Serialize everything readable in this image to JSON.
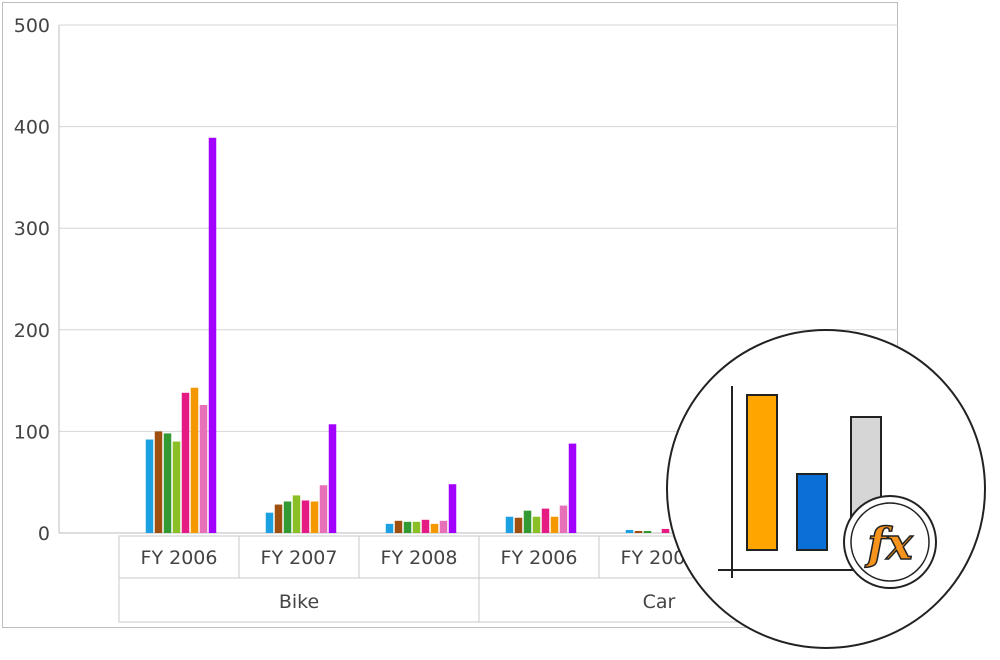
{
  "chart_data": {
    "type": "bar",
    "title": "",
    "xlabel": "",
    "ylabel": "",
    "ylim": [
      0,
      500
    ],
    "yticks": [
      0,
      100,
      200,
      300,
      400,
      500
    ],
    "grid": true,
    "groups": [
      {
        "label": "Bike",
        "categories": [
          "FY 2006",
          "FY 2007",
          "FY 2008"
        ]
      },
      {
        "label": "Car",
        "categories": [
          "FY 2006",
          "FY 2007"
        ]
      }
    ],
    "series_colors": [
      "#1ba1e2",
      "#a0500e",
      "#339933",
      "#8cbf26",
      "#e51a83",
      "#f59800",
      "#e671b8",
      "#a200ff"
    ],
    "bars": [
      [
        92,
        100,
        98,
        90,
        138,
        143,
        126,
        389
      ],
      [
        20,
        28,
        31,
        37,
        32,
        31,
        47,
        107
      ],
      [
        9,
        12,
        11,
        11,
        13,
        9,
        12,
        48
      ],
      [
        16,
        15,
        22,
        16,
        24,
        16,
        27,
        88
      ],
      [
        3,
        2,
        2,
        0,
        4,
        0,
        0,
        0
      ]
    ]
  },
  "overlay": {
    "icon": "formula-chart-icon",
    "fx_label": "fx",
    "colors": {
      "bar1": "#ffa500",
      "bar2": "#0a6fd6",
      "bar3": "#d6d6d6",
      "fx": "#f7941d"
    }
  }
}
